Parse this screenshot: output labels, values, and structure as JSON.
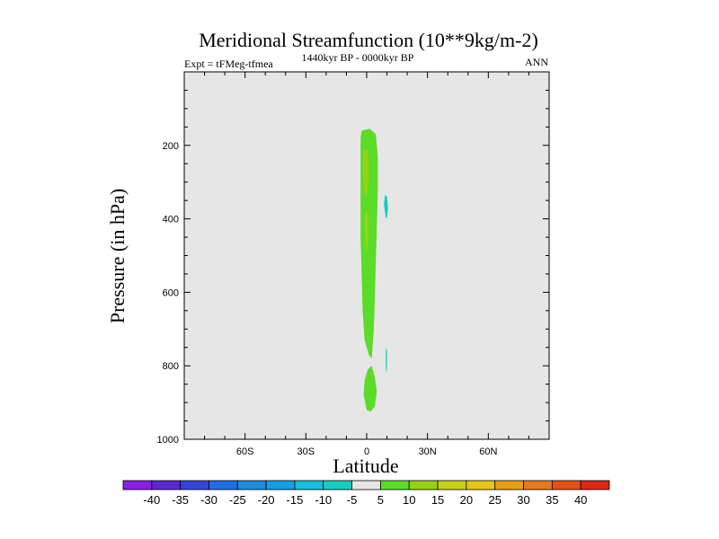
{
  "chart_data": {
    "type": "contour",
    "title": "Meridional Streamfunction (10**9kg/m-2)",
    "subtitle_left": "Expt = tFMeg-tfmea",
    "subtitle_center": "1440kyr BP - 0000kyr BP",
    "subtitle_right": "ANN",
    "xlabel": "Latitude",
    "ylabel": "Pressure (in hPa)",
    "xlim": [
      -90,
      90
    ],
    "ylim": [
      1000,
      0
    ],
    "x_ticks": [
      {
        "value": -60,
        "label": "60S"
      },
      {
        "value": -30,
        "label": "30S"
      },
      {
        "value": 0,
        "label": "0"
      },
      {
        "value": 30,
        "label": "30N"
      },
      {
        "value": 60,
        "label": "60N"
      }
    ],
    "y_ticks": [
      {
        "value": 200,
        "label": "200"
      },
      {
        "value": 400,
        "label": "400"
      },
      {
        "value": 600,
        "label": "600"
      },
      {
        "value": 800,
        "label": "800"
      },
      {
        "value": 1000,
        "label": "1000"
      }
    ],
    "colorbar": {
      "labels": [
        "-40",
        "-35",
        "-30",
        "-25",
        "-20",
        "-15",
        "-10",
        "-5",
        "5",
        "10",
        "15",
        "20",
        "25",
        "30",
        "35",
        "40"
      ],
      "colors": [
        "#8c1ee6",
        "#5a28d2",
        "#3246dc",
        "#1e6ee6",
        "#1e8cdc",
        "#14a0e6",
        "#14bedc",
        "#14cdc3",
        "#e6e6e6",
        "#5adc28",
        "#96d214",
        "#c8d214",
        "#e6c814",
        "#e6a014",
        "#e6781e",
        "#e65014",
        "#dc2814"
      ]
    },
    "background_color": "#e6e6e6",
    "regions": [
      {
        "name": "positive-5-10-main",
        "color": "#5adc28",
        "points": [
          [
            -2.5,
            160
          ],
          [
            1.5,
            155
          ],
          [
            4.5,
            170
          ],
          [
            5.5,
            230
          ],
          [
            5.5,
            320
          ],
          [
            5,
            420
          ],
          [
            4.5,
            520
          ],
          [
            4,
            620
          ],
          [
            3.5,
            700
          ],
          [
            2.5,
            780
          ],
          [
            1,
            770
          ],
          [
            -1,
            730
          ],
          [
            -2,
            650
          ],
          [
            -2.5,
            550
          ],
          [
            -3,
            450
          ],
          [
            -3,
            350
          ],
          [
            -3,
            250
          ],
          [
            -3,
            180
          ]
        ]
      },
      {
        "name": "positive-10-15-upper",
        "color": "#96d214",
        "points": [
          [
            -1.5,
            215
          ],
          [
            0.5,
            210
          ],
          [
            1,
            250
          ],
          [
            1,
            300
          ],
          [
            0,
            335
          ],
          [
            -1,
            330
          ],
          [
            -1.5,
            290
          ],
          [
            -2,
            250
          ]
        ]
      },
      {
        "name": "positive-10-15-lower",
        "color": "#96d214",
        "points": [
          [
            -0.5,
            375
          ],
          [
            0.5,
            380
          ],
          [
            1,
            430
          ],
          [
            0.5,
            470
          ],
          [
            0,
            490
          ],
          [
            -0.5,
            470
          ],
          [
            -1,
            430
          ],
          [
            -1,
            400
          ]
        ]
      },
      {
        "name": "positive-5-10-bottom",
        "color": "#5adc28",
        "points": [
          [
            2.5,
            800
          ],
          [
            4,
            830
          ],
          [
            5,
            870
          ],
          [
            4,
            910
          ],
          [
            2,
            925
          ],
          [
            0,
            920
          ],
          [
            -1.5,
            880
          ],
          [
            -1,
            840
          ],
          [
            0.5,
            810
          ]
        ]
      },
      {
        "name": "negative-10-5-upper",
        "color": "#14cdc3",
        "points": [
          [
            9,
            335
          ],
          [
            10,
            340
          ],
          [
            10.5,
            370
          ],
          [
            10,
            395
          ],
          [
            9.5,
            400
          ],
          [
            9,
            380
          ],
          [
            8.5,
            360
          ]
        ]
      },
      {
        "name": "negative-10-5-lower",
        "color": "#14cdc3",
        "points": [
          [
            9.5,
            750
          ],
          [
            10,
            760
          ],
          [
            10,
            800
          ],
          [
            9.8,
            820
          ],
          [
            9.5,
            810
          ],
          [
            9.4,
            780
          ]
        ]
      }
    ]
  }
}
